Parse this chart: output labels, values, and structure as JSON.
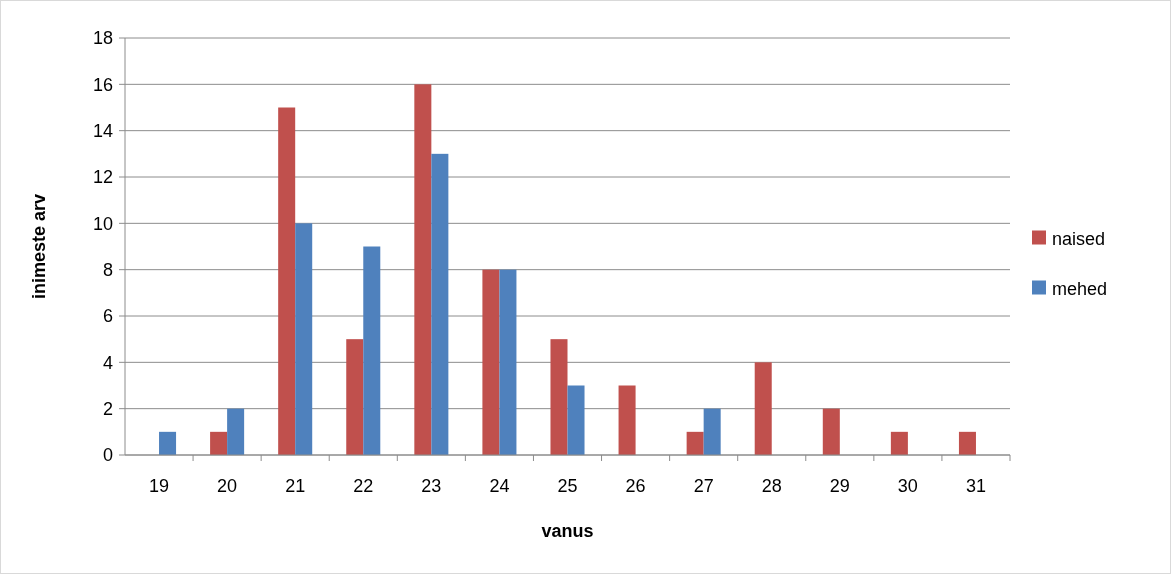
{
  "chart_data": {
    "type": "bar",
    "xlabel": "vanus",
    "ylabel": "inimeste arv",
    "categories": [
      "19",
      "20",
      "21",
      "22",
      "23",
      "24",
      "25",
      "26",
      "27",
      "28",
      "29",
      "30",
      "31"
    ],
    "series": [
      {
        "name": "naised",
        "color": "#c0504d",
        "values": [
          0,
          1,
          15,
          5,
          16,
          8,
          5,
          3,
          1,
          4,
          2,
          1,
          1
        ]
      },
      {
        "name": "mehed",
        "color": "#4f81bd",
        "values": [
          1,
          2,
          10,
          9,
          13,
          8,
          3,
          0,
          2,
          0,
          0,
          0,
          0
        ]
      }
    ],
    "ylim": [
      0,
      18
    ],
    "yticks": [
      0,
      2,
      4,
      6,
      8,
      10,
      12,
      14,
      16,
      18
    ],
    "grid": "y",
    "legend": "right"
  }
}
